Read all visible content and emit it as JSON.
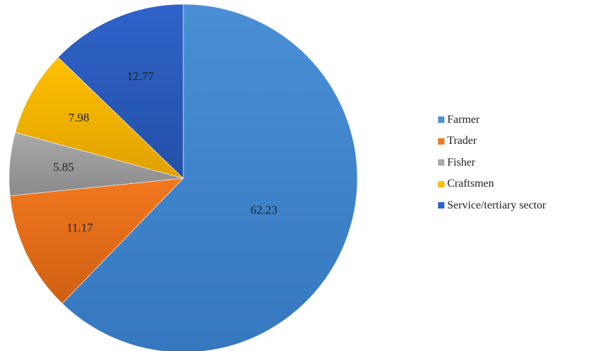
{
  "chart_data": {
    "type": "pie",
    "title": "",
    "start_angle_deg": 90,
    "direction": "clockwise",
    "slices": [
      {
        "label": "Farmer",
        "value": 62.23,
        "value_label": "62.23",
        "color": "#4a8fd6",
        "shade": "#3578c0"
      },
      {
        "label": "Trader",
        "value": 11.17,
        "value_label": "11.17",
        "color": "#f2781f",
        "shade": "#cf5f12"
      },
      {
        "label": "Fisher",
        "value": 5.85,
        "value_label": "5.85",
        "color": "#a9a9a9",
        "shade": "#8a8a8a"
      },
      {
        "label": "Craftsmen",
        "value": 7.98,
        "value_label": "7.98",
        "color": "#ffc000",
        "shade": "#e0a100"
      },
      {
        "label": "Service/tertiary sector",
        "value": 12.77,
        "value_label": "12.77",
        "color": "#2f63c9",
        "shade": "#2350a8"
      }
    ],
    "legend": {
      "placement": "right",
      "items": [
        {
          "label": "Farmer",
          "color": "#4a8fd6"
        },
        {
          "label": "Trader",
          "color": "#f2781f"
        },
        {
          "label": "Fisher",
          "color": "#a9a9a9"
        },
        {
          "label": "Craftsmen",
          "color": "#ffc000"
        },
        {
          "label": "Service/tertiary sector",
          "color": "#2f63c9"
        }
      ]
    }
  }
}
